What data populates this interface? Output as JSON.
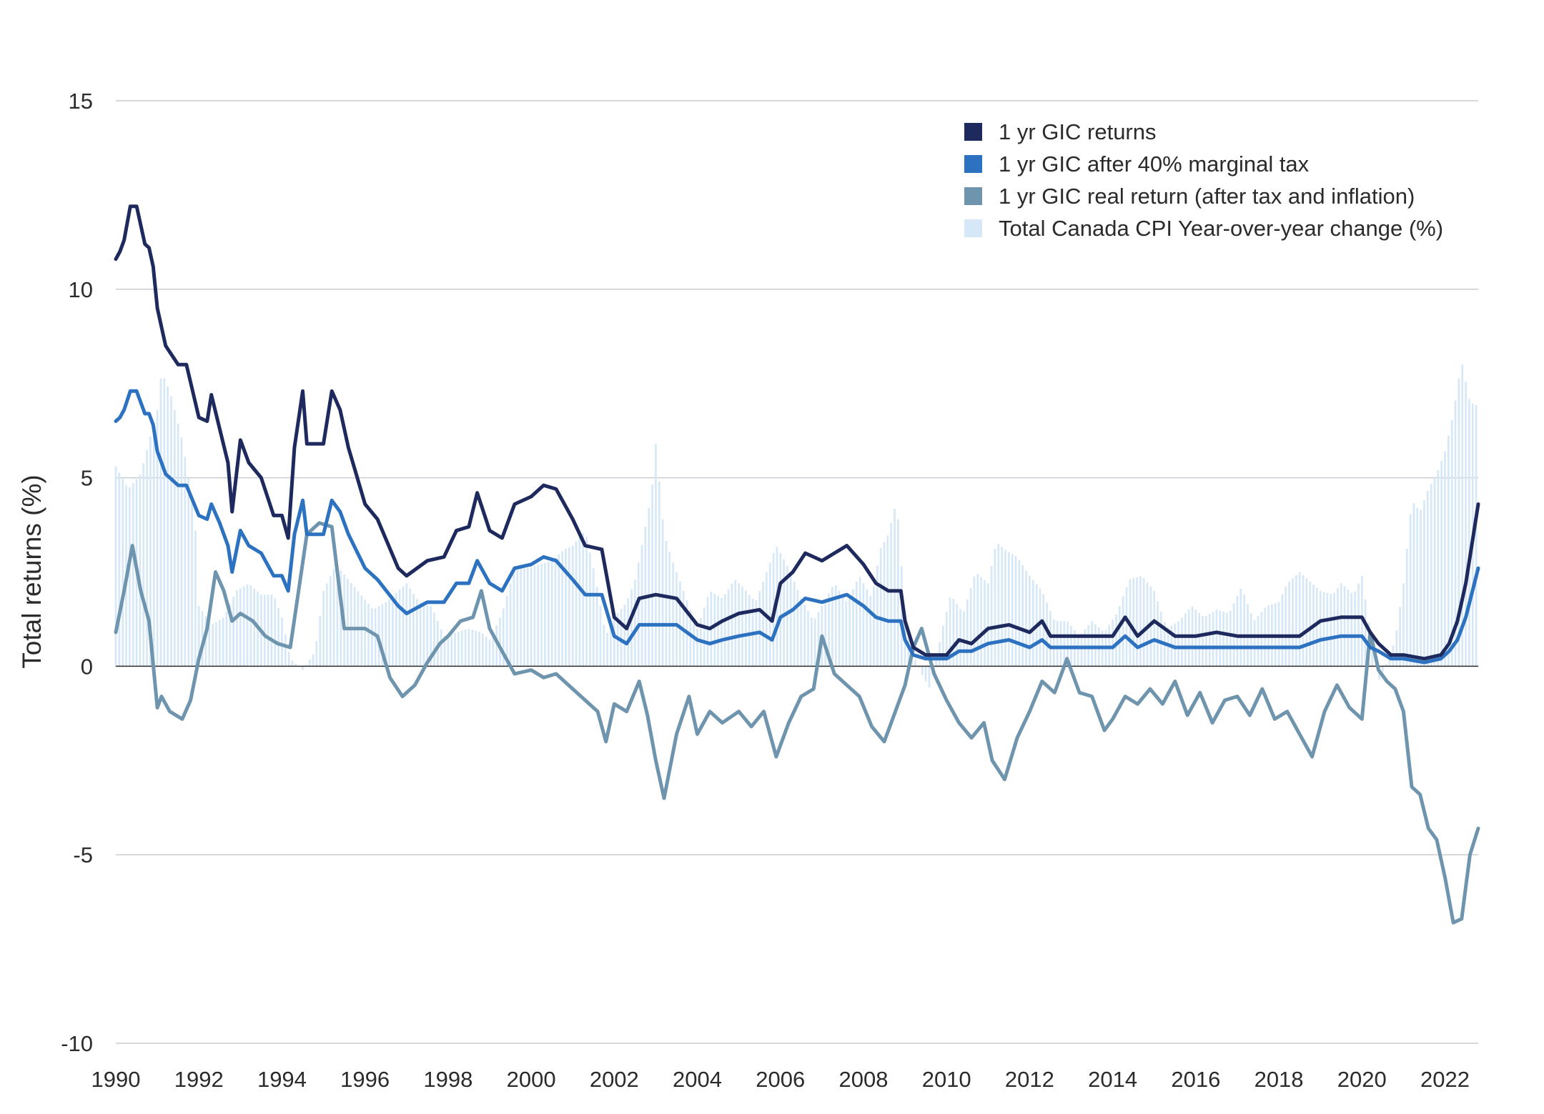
{
  "chart_data": {
    "type": "line",
    "title": "",
    "xlabel": "",
    "ylabel": "Total returns (%)",
    "xlim": [
      1990,
      2022.8
    ],
    "ylim": [
      -10,
      15
    ],
    "yticks": [
      15,
      10,
      5,
      0,
      -5,
      -10
    ],
    "xticks": [
      1990,
      1992,
      1994,
      1996,
      1998,
      2000,
      2002,
      2004,
      2006,
      2008,
      2010,
      2012,
      2014,
      2016,
      2018,
      2020,
      2022
    ],
    "grid": "horizontal",
    "legend_position": "top-right",
    "colors": {
      "gic": "#1e2a5e",
      "after_tax": "#2c72c1",
      "real": "#6f95ae",
      "cpi": "#d6e8f7",
      "zero": "#2b2b2b",
      "grid": "#c9ccd1"
    },
    "series": [
      {
        "name": "1 yr GIC returns",
        "type": "line",
        "color": "#1e2a5e",
        "x": [
          1990.0,
          1990.1,
          1990.2,
          1990.35,
          1990.5,
          1990.7,
          1990.8,
          1990.9,
          1991.0,
          1991.2,
          1991.5,
          1991.7,
          1992.0,
          1992.2,
          1992.3,
          1992.5,
          1992.7,
          1992.8,
          1993.0,
          1993.2,
          1993.5,
          1993.8,
          1994.0,
          1994.15,
          1994.3,
          1994.5,
          1994.6,
          1995.0,
          1995.2,
          1995.4,
          1995.6,
          1996.0,
          1996.3,
          1996.8,
          1997.0,
          1997.5,
          1997.9,
          1998.2,
          1998.5,
          1998.7,
          1999.0,
          1999.3,
          1999.6,
          2000.0,
          2000.3,
          2000.6,
          2001.0,
          2001.3,
          2001.7,
          2002.0,
          2002.3,
          2002.6,
          2003.0,
          2003.5,
          2004.0,
          2004.3,
          2004.6,
          2005.0,
          2005.5,
          2005.8,
          2006.0,
          2006.3,
          2006.6,
          2007.0,
          2007.3,
          2007.6,
          2008.0,
          2008.3,
          2008.6,
          2008.9,
          2009.0,
          2009.2,
          2009.5,
          2010.0,
          2010.3,
          2010.6,
          2011.0,
          2011.5,
          2012.0,
          2012.3,
          2012.5,
          2013.0,
          2013.5,
          2014.0,
          2014.3,
          2014.6,
          2015.0,
          2015.5,
          2016.0,
          2016.5,
          2017.0,
          2017.5,
          2018.0,
          2018.5,
          2019.0,
          2019.5,
          2020.0,
          2020.2,
          2020.4,
          2020.7,
          2021.0,
          2021.5,
          2021.9,
          2022.1,
          2022.3,
          2022.5,
          2022.8
        ],
        "y": [
          10.8,
          11.0,
          11.3,
          12.2,
          12.2,
          11.2,
          11.1,
          10.6,
          9.5,
          8.5,
          8.0,
          8.0,
          6.6,
          6.5,
          7.2,
          6.3,
          5.4,
          4.1,
          6.0,
          5.4,
          5.0,
          4.0,
          4.0,
          3.4,
          5.8,
          7.3,
          5.9,
          5.9,
          7.3,
          6.8,
          5.8,
          4.3,
          3.9,
          2.6,
          2.4,
          2.8,
          2.9,
          3.6,
          3.7,
          4.6,
          3.6,
          3.4,
          4.3,
          4.5,
          4.8,
          4.7,
          3.9,
          3.2,
          3.1,
          1.3,
          1.0,
          1.8,
          1.9,
          1.8,
          1.1,
          1.0,
          1.2,
          1.4,
          1.5,
          1.2,
          2.2,
          2.5,
          3.0,
          2.8,
          3.0,
          3.2,
          2.7,
          2.2,
          2.0,
          2.0,
          1.2,
          0.5,
          0.3,
          0.3,
          0.7,
          0.6,
          1.0,
          1.1,
          0.9,
          1.2,
          0.8,
          0.8,
          0.8,
          0.8,
          1.3,
          0.8,
          1.2,
          0.8,
          0.8,
          0.9,
          0.8,
          0.8,
          0.8,
          0.8,
          1.2,
          1.3,
          1.3,
          0.9,
          0.6,
          0.3,
          0.3,
          0.2,
          0.3,
          0.6,
          1.2,
          2.2,
          4.3
        ]
      },
      {
        "name": "1 yr GIC after 40% marginal tax",
        "type": "line",
        "color": "#2c72c1",
        "x": [
          1990.0,
          1990.1,
          1990.2,
          1990.35,
          1990.5,
          1990.7,
          1990.8,
          1990.9,
          1991.0,
          1991.2,
          1991.5,
          1991.7,
          1992.0,
          1992.2,
          1992.3,
          1992.5,
          1992.7,
          1992.8,
          1993.0,
          1993.2,
          1993.5,
          1993.8,
          1994.0,
          1994.15,
          1994.3,
          1994.5,
          1994.6,
          1995.0,
          1995.2,
          1995.4,
          1995.6,
          1996.0,
          1996.3,
          1996.8,
          1997.0,
          1997.5,
          1997.9,
          1998.2,
          1998.5,
          1998.7,
          1999.0,
          1999.3,
          1999.6,
          2000.0,
          2000.3,
          2000.6,
          2001.0,
          2001.3,
          2001.7,
          2002.0,
          2002.3,
          2002.6,
          2003.0,
          2003.5,
          2004.0,
          2004.3,
          2004.6,
          2005.0,
          2005.5,
          2005.8,
          2006.0,
          2006.3,
          2006.6,
          2007.0,
          2007.3,
          2007.6,
          2008.0,
          2008.3,
          2008.6,
          2008.9,
          2009.0,
          2009.2,
          2009.5,
          2010.0,
          2010.3,
          2010.6,
          2011.0,
          2011.5,
          2012.0,
          2012.3,
          2012.5,
          2013.0,
          2013.5,
          2014.0,
          2014.3,
          2014.6,
          2015.0,
          2015.5,
          2016.0,
          2016.5,
          2017.0,
          2017.5,
          2018.0,
          2018.5,
          2019.0,
          2019.5,
          2020.0,
          2020.2,
          2020.4,
          2020.7,
          2021.0,
          2021.5,
          2021.9,
          2022.1,
          2022.3,
          2022.5,
          2022.8
        ],
        "y": [
          6.5,
          6.6,
          6.8,
          7.3,
          7.3,
          6.7,
          6.7,
          6.4,
          5.7,
          5.1,
          4.8,
          4.8,
          4.0,
          3.9,
          4.3,
          3.8,
          3.2,
          2.5,
          3.6,
          3.2,
          3.0,
          2.4,
          2.4,
          2.0,
          3.5,
          4.4,
          3.5,
          3.5,
          4.4,
          4.1,
          3.5,
          2.6,
          2.3,
          1.6,
          1.4,
          1.7,
          1.7,
          2.2,
          2.2,
          2.8,
          2.2,
          2.0,
          2.6,
          2.7,
          2.9,
          2.8,
          2.3,
          1.9,
          1.9,
          0.8,
          0.6,
          1.1,
          1.1,
          1.1,
          0.7,
          0.6,
          0.7,
          0.8,
          0.9,
          0.7,
          1.3,
          1.5,
          1.8,
          1.7,
          1.8,
          1.9,
          1.6,
          1.3,
          1.2,
          1.2,
          0.7,
          0.3,
          0.2,
          0.2,
          0.4,
          0.4,
          0.6,
          0.7,
          0.5,
          0.7,
          0.5,
          0.5,
          0.5,
          0.5,
          0.8,
          0.5,
          0.7,
          0.5,
          0.5,
          0.5,
          0.5,
          0.5,
          0.5,
          0.5,
          0.7,
          0.8,
          0.8,
          0.5,
          0.4,
          0.2,
          0.2,
          0.1,
          0.2,
          0.4,
          0.7,
          1.3,
          2.6
        ]
      },
      {
        "name": "1 yr GIC real return (after tax and inflation)",
        "type": "line",
        "color": "#6f95ae",
        "x": [
          1990.0,
          1990.2,
          1990.4,
          1990.6,
          1990.8,
          1991.0,
          1991.1,
          1991.3,
          1991.6,
          1991.8,
          1992.0,
          1992.2,
          1992.4,
          1992.6,
          1992.8,
          1993.0,
          1993.3,
          1993.6,
          1993.9,
          1994.2,
          1994.4,
          1994.6,
          1994.9,
          1995.2,
          1995.5,
          1995.8,
          1996.0,
          1996.3,
          1996.6,
          1996.9,
          1997.2,
          1997.5,
          1997.8,
          1998.0,
          1998.3,
          1998.6,
          1998.8,
          1999.0,
          1999.3,
          1999.6,
          2000.0,
          2000.3,
          2000.6,
          2001.0,
          2001.3,
          2001.6,
          2001.8,
          2002.0,
          2002.3,
          2002.6,
          2002.8,
          2003.0,
          2003.2,
          2003.5,
          2003.8,
          2004.0,
          2004.3,
          2004.6,
          2005.0,
          2005.3,
          2005.6,
          2005.9,
          2006.2,
          2006.5,
          2006.8,
          2007.0,
          2007.3,
          2007.6,
          2007.9,
          2008.2,
          2008.5,
          2008.7,
          2009.0,
          2009.2,
          2009.4,
          2009.7,
          2010.0,
          2010.3,
          2010.6,
          2010.9,
          2011.1,
          2011.4,
          2011.7,
          2012.0,
          2012.3,
          2012.6,
          2012.9,
          2013.2,
          2013.5,
          2013.8,
          2014.0,
          2014.3,
          2014.6,
          2014.9,
          2015.2,
          2015.5,
          2015.8,
          2016.1,
          2016.4,
          2016.7,
          2017.0,
          2017.3,
          2017.6,
          2017.9,
          2018.2,
          2018.5,
          2018.8,
          2019.1,
          2019.4,
          2019.7,
          2020.0,
          2020.2,
          2020.4,
          2020.6,
          2020.8,
          2021.0,
          2021.2,
          2021.4,
          2021.6,
          2021.8,
          2022.0,
          2022.2,
          2022.4,
          2022.6,
          2022.8
        ],
        "y": [
          0.9,
          2.0,
          3.2,
          2.0,
          1.2,
          -1.1,
          -0.8,
          -1.2,
          -1.4,
          -0.9,
          0.2,
          1.0,
          2.5,
          2.0,
          1.2,
          1.4,
          1.2,
          0.8,
          0.6,
          0.5,
          2.0,
          3.5,
          3.8,
          3.7,
          1.0,
          1.0,
          1.0,
          0.8,
          -0.3,
          -0.8,
          -0.5,
          0.1,
          0.6,
          0.8,
          1.2,
          1.3,
          2.0,
          1.0,
          0.4,
          -0.2,
          -0.1,
          -0.3,
          -0.2,
          -0.6,
          -0.9,
          -1.2,
          -2.0,
          -1.0,
          -1.2,
          -0.4,
          -1.3,
          -2.5,
          -3.5,
          -1.8,
          -0.8,
          -1.8,
          -1.2,
          -1.5,
          -1.2,
          -1.6,
          -1.2,
          -2.4,
          -1.5,
          -0.8,
          -0.6,
          0.8,
          -0.2,
          -0.5,
          -0.8,
          -1.6,
          -2.0,
          -1.4,
          -0.5,
          0.5,
          1.0,
          -0.2,
          -0.9,
          -1.5,
          -1.9,
          -1.5,
          -2.5,
          -3.0,
          -1.9,
          -1.2,
          -0.4,
          -0.7,
          0.2,
          -0.7,
          -0.8,
          -1.7,
          -1.4,
          -0.8,
          -1.0,
          -0.6,
          -1.0,
          -0.4,
          -1.3,
          -0.7,
          -1.5,
          -0.9,
          -0.8,
          -1.3,
          -0.6,
          -1.4,
          -1.2,
          -1.8,
          -2.4,
          -1.2,
          -0.5,
          -1.1,
          -1.4,
          0.9,
          -0.1,
          -0.4,
          -0.6,
          -1.2,
          -3.2,
          -3.4,
          -4.3,
          -4.6,
          -5.6,
          -6.8,
          -6.7,
          -5.0,
          -4.3
        ]
      },
      {
        "name": "Total Canada CPI Year-over-year change (%)",
        "type": "bar",
        "color": "#d6e8f7",
        "x": [
          1990.0,
          1990.3,
          1990.6,
          1991.0,
          1991.1,
          1991.3,
          1991.6,
          1991.9,
          1992.0,
          1992.3,
          1992.6,
          1992.9,
          1993.2,
          1993.5,
          1993.8,
          1994.0,
          1994.2,
          1994.5,
          1994.8,
          1995.0,
          1995.3,
          1995.6,
          1995.9,
          1996.2,
          1996.5,
          1996.8,
          1997.0,
          1997.3,
          1997.6,
          1997.9,
          1998.2,
          1998.5,
          1998.8,
          1999.0,
          1999.3,
          1999.6,
          1999.9,
          2000.2,
          2000.5,
          2000.8,
          2001.0,
          2001.3,
          2001.5,
          2001.8,
          2002.0,
          2002.3,
          2002.5,
          2002.7,
          2002.9,
          2003.0,
          2003.2,
          2003.4,
          2003.6,
          2003.8,
          2004.0,
          2004.3,
          2004.6,
          2004.9,
          2005.1,
          2005.4,
          2005.7,
          2005.9,
          2006.2,
          2006.5,
          2006.8,
          2007.0,
          2007.3,
          2007.6,
          2007.9,
          2008.2,
          2008.4,
          2008.6,
          2008.8,
          2009.0,
          2009.2,
          2009.4,
          2009.6,
          2009.9,
          2010.1,
          2010.4,
          2010.7,
          2011.0,
          2011.2,
          2011.4,
          2011.7,
          2012.0,
          2012.3,
          2012.6,
          2012.9,
          2013.2,
          2013.5,
          2013.8,
          2014.1,
          2014.4,
          2014.7,
          2015.0,
          2015.3,
          2015.6,
          2015.9,
          2016.2,
          2016.5,
          2016.8,
          2017.1,
          2017.4,
          2017.7,
          2018.0,
          2018.2,
          2018.5,
          2018.8,
          2019.0,
          2019.3,
          2019.5,
          2019.8,
          2020.0,
          2020.2,
          2020.4,
          2020.6,
          2020.8,
          2021.0,
          2021.2,
          2021.4,
          2021.6,
          2021.8,
          2022.0,
          2022.2,
          2022.4,
          2022.6,
          2022.8
        ],
        "y": [
          5.3,
          4.7,
          5.1,
          6.8,
          7.8,
          7.3,
          6.0,
          4.0,
          1.6,
          1.1,
          1.3,
          2.0,
          2.2,
          1.9,
          1.9,
          1.3,
          0.2,
          -0.1,
          0.4,
          2.0,
          2.7,
          2.3,
          1.9,
          1.5,
          1.7,
          2.0,
          2.2,
          1.7,
          1.6,
          0.8,
          0.9,
          1.0,
          0.9,
          0.7,
          1.4,
          2.6,
          2.6,
          2.7,
          2.8,
          3.1,
          3.2,
          3.6,
          2.6,
          0.8,
          1.3,
          1.7,
          2.3,
          3.4,
          4.6,
          5.9,
          3.5,
          2.8,
          2.2,
          1.6,
          1.0,
          2.0,
          1.8,
          2.3,
          2.1,
          1.7,
          2.6,
          3.2,
          2.6,
          1.8,
          1.2,
          1.6,
          2.2,
          1.7,
          2.4,
          1.8,
          3.1,
          3.5,
          4.4,
          1.4,
          0.3,
          -0.2,
          -0.6,
          1.0,
          1.9,
          1.4,
          2.5,
          2.2,
          3.3,
          3.1,
          2.9,
          2.4,
          2.0,
          1.2,
          1.2,
          0.8,
          1.2,
          0.9,
          1.4,
          2.3,
          2.4,
          2.0,
          1.0,
          1.2,
          1.6,
          1.3,
          1.5,
          1.4,
          2.1,
          1.2,
          1.6,
          1.7,
          2.2,
          2.5,
          2.2,
          2.0,
          1.9,
          2.2,
          1.9,
          2.4,
          0.9,
          -0.4,
          0.1,
          0.7,
          2.2,
          4.4,
          4.1,
          4.7,
          5.1,
          5.7,
          6.7,
          8.1,
          7.0,
          6.9
        ]
      }
    ]
  }
}
